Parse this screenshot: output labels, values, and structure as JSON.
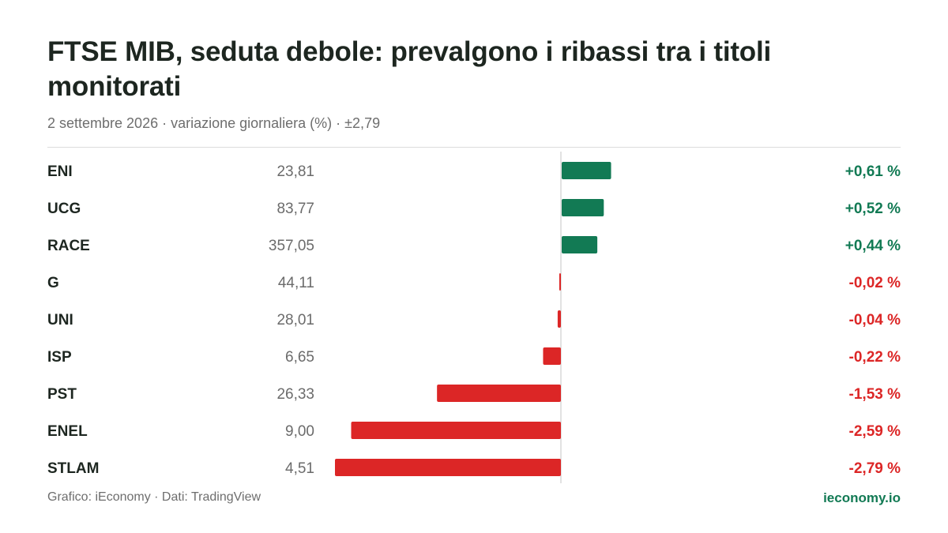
{
  "header": {
    "title": "FTSE MIB, seduta debole: prevalgono i ribassi tra i titoli monitorati",
    "subtitle": "2 settembre 2026 · variazione giornaliera (%) · ±2,79"
  },
  "footer": {
    "source": "Grafico: iEconomy · Dati: TradingView",
    "brand": "ieconomy.io"
  },
  "colors": {
    "positive": "#127a54",
    "negative": "#dc2626",
    "axis": "#d9d9d9"
  },
  "chart_data": {
    "type": "bar",
    "orientation": "horizontal",
    "title": "FTSE MIB, seduta debole: prevalgono i ribassi tra i titoli monitorati",
    "subtitle": "2 settembre 2026 · variazione giornaliera (%) · ±2,79",
    "xlim": [
      -2.79,
      2.79
    ],
    "grid": false,
    "categories": [
      "ENI",
      "UCG",
      "RACE",
      "G",
      "UNI",
      "ISP",
      "PST",
      "ENEL",
      "STLAM"
    ],
    "prices": [
      "23,81",
      "83,77",
      "357,05",
      "44,11",
      "28,01",
      "6,65",
      "26,33",
      "9,00",
      "4,51"
    ],
    "values": [
      0.61,
      0.52,
      0.44,
      -0.02,
      -0.04,
      -0.22,
      -1.53,
      -2.59,
      -2.79
    ],
    "value_labels": [
      "+0,61 %",
      "+0,52 %",
      "+0,44 %",
      "-0,02 %",
      "-0,04 %",
      "-0,22 %",
      "-1,53 %",
      "-2,59 %",
      "-2,79 %"
    ]
  }
}
